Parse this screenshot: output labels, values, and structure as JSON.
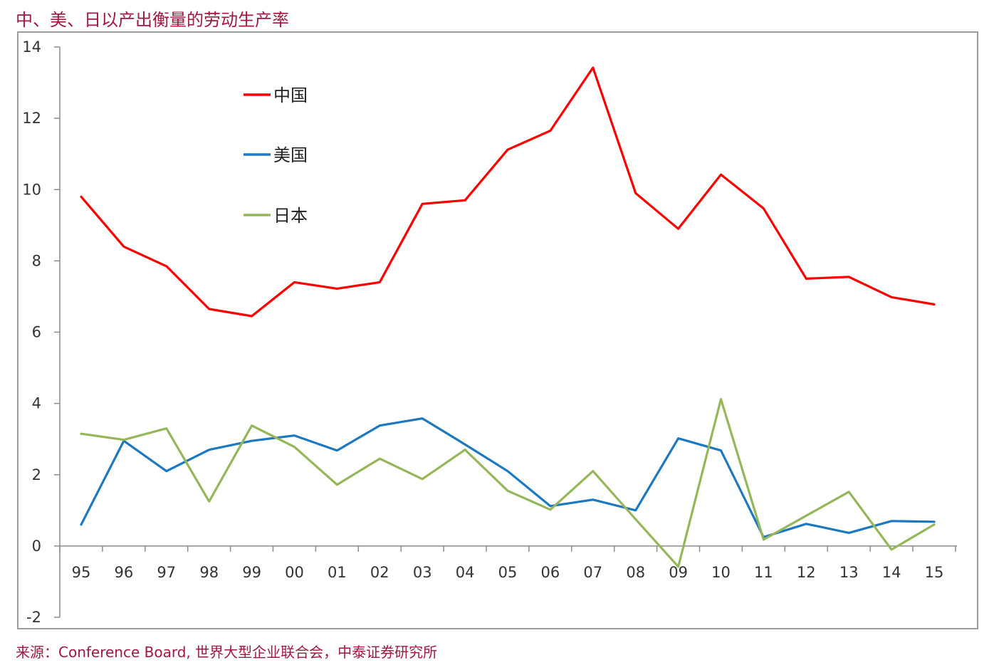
{
  "header": {
    "title": "中、美、日以产出衡量的劳动生产率"
  },
  "footer": {
    "source": "来源：Conference Board, 世界大型企业联合会，中泰证券研究所"
  },
  "chart_data": {
    "type": "line",
    "categories": [
      "95",
      "96",
      "97",
      "98",
      "99",
      "00",
      "01",
      "02",
      "03",
      "04",
      "05",
      "06",
      "07",
      "08",
      "09",
      "10",
      "11",
      "12",
      "13",
      "14",
      "15"
    ],
    "ylim": [
      -2,
      14
    ],
    "yticks": [
      -2,
      0,
      2,
      4,
      6,
      8,
      10,
      12,
      14
    ],
    "legend_position": "top-left",
    "series": [
      {
        "name": "中国",
        "color": "#ff0000",
        "values": [
          9.8,
          8.4,
          7.85,
          6.65,
          6.45,
          7.4,
          7.22,
          7.4,
          9.6,
          9.7,
          11.12,
          11.65,
          13.42,
          9.9,
          8.9,
          10.42,
          9.47,
          7.5,
          7.55,
          6.98,
          6.78
        ]
      },
      {
        "name": "美国",
        "color": "#1c78c0",
        "values": [
          0.6,
          2.95,
          2.1,
          2.7,
          2.95,
          3.1,
          2.68,
          3.38,
          3.58,
          2.85,
          2.1,
          1.12,
          1.3,
          1.0,
          3.02,
          2.68,
          0.25,
          0.62,
          0.37,
          0.7,
          0.68
        ]
      },
      {
        "name": "日本",
        "color": "#95b75a",
        "values": [
          3.15,
          2.98,
          3.3,
          1.25,
          3.38,
          2.78,
          1.72,
          2.45,
          1.88,
          2.7,
          1.55,
          1.02,
          2.1,
          0.75,
          -0.58,
          4.12,
          0.18,
          0.85,
          1.52,
          -0.1,
          0.6
        ]
      }
    ]
  }
}
